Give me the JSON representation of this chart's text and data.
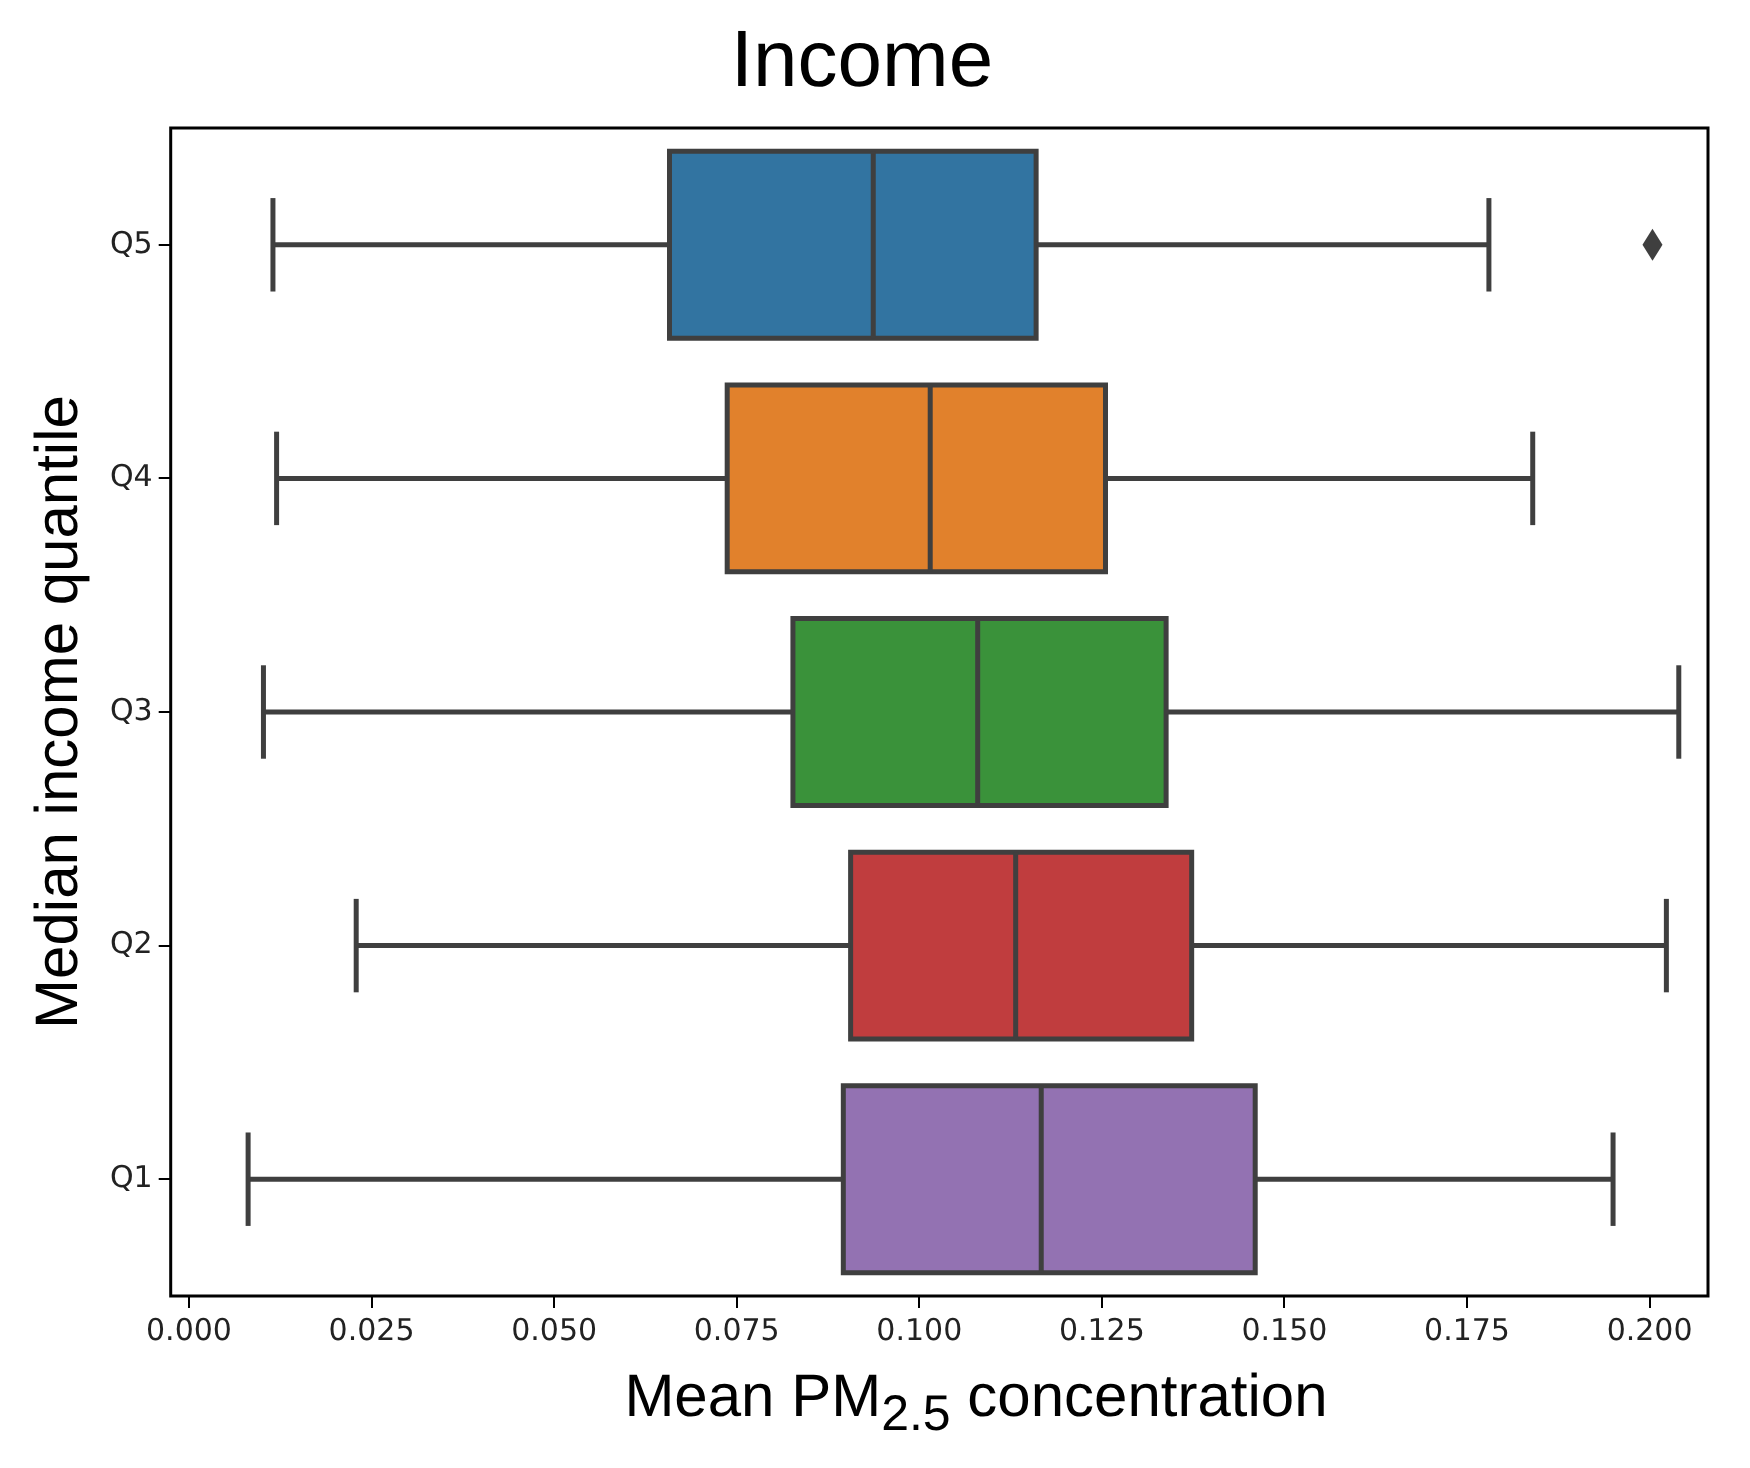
{
  "chart_data": {
    "type": "box",
    "title": "Income",
    "xlabel": "Mean PM$_{2.5}$ concentration",
    "ylabel": "Median income quantile",
    "orientation": "horizontal",
    "categories": [
      "Q5",
      "Q4",
      "Q3",
      "Q2",
      "Q1"
    ],
    "colors": [
      "#3274a1",
      "#e1812c",
      "#3a923a",
      "#c03d3e",
      "#9372b2"
    ],
    "boxes": [
      {
        "low": 0.0115,
        "q1": 0.0658,
        "median": 0.0937,
        "q3": 0.116,
        "high": 0.178,
        "outliers": [
          0.2004
        ]
      },
      {
        "low": 0.012,
        "q1": 0.0737,
        "median": 0.1015,
        "q3": 0.1255,
        "high": 0.184
      },
      {
        "low": 0.0102,
        "q1": 0.0827,
        "median": 0.108,
        "q3": 0.1338,
        "high": 0.204
      },
      {
        "low": 0.0229,
        "q1": 0.0906,
        "median": 0.1132,
        "q3": 0.1373,
        "high": 0.2023
      },
      {
        "low": 0.0081,
        "q1": 0.0896,
        "median": 0.1167,
        "q3": 0.146,
        "high": 0.195
      }
    ],
    "xlim": [
      -0.0025,
      0.208
    ],
    "xticks": [
      {
        "value": 0,
        "label": "0.000"
      },
      {
        "value": 0.025,
        "label": "0.025"
      },
      {
        "value": 0.05,
        "label": "0.050"
      },
      {
        "value": 0.075,
        "label": "0.075"
      },
      {
        "value": 0.1,
        "label": "0.100"
      },
      {
        "value": 0.125,
        "label": "0.125"
      },
      {
        "value": 0.15,
        "label": "0.150"
      },
      {
        "value": 0.175,
        "label": "0.175"
      },
      {
        "value": 0.2,
        "label": "0.200"
      }
    ],
    "grid": false,
    "legend": false
  }
}
